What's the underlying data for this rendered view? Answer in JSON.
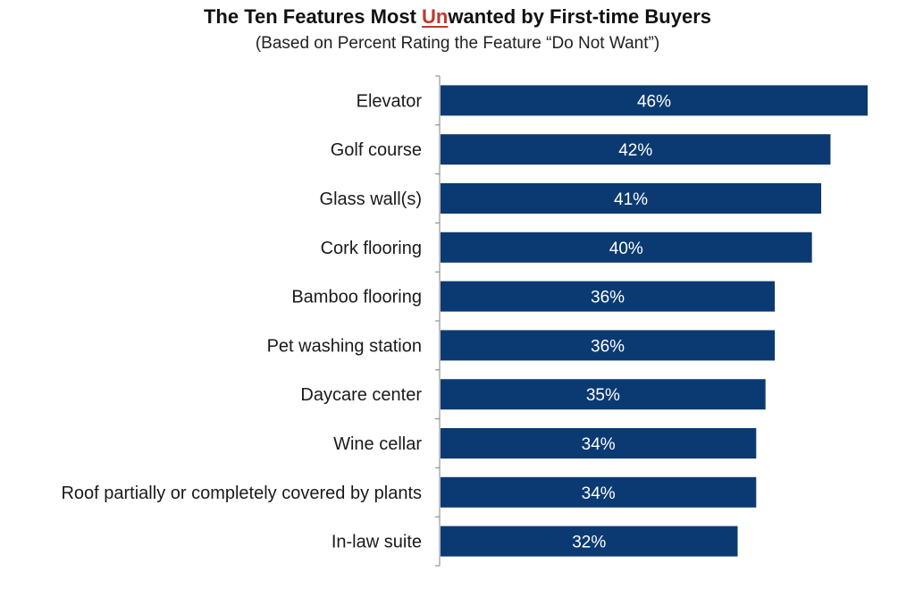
{
  "chart_data": {
    "type": "bar",
    "orientation": "horizontal",
    "title_parts": [
      "The Ten Features Most ",
      "Un",
      "wanted by First-time Buyers"
    ],
    "subtitle": "(Based on Percent Rating the Feature “Do Not Want”)",
    "categories": [
      "Elevator",
      "Golf course",
      "Glass wall(s)",
      "Cork flooring",
      "Bamboo flooring",
      "Pet washing station",
      "Daycare center",
      "Wine cellar",
      "Roof partially or completely covered by plants",
      "In-law suite"
    ],
    "values": [
      46,
      42,
      41,
      40,
      36,
      36,
      35,
      34,
      34,
      32
    ],
    "value_labels": [
      "46%",
      "42%",
      "41%",
      "40%",
      "36%",
      "36%",
      "35%",
      "34%",
      "34%",
      "32%"
    ],
    "unit": "%",
    "xlim": [
      0,
      46
    ],
    "bar_color": "#0b3a73",
    "highlight_color": "#c0392b",
    "value_label_color": "#ffffff",
    "legend": "none",
    "grid": false
  }
}
